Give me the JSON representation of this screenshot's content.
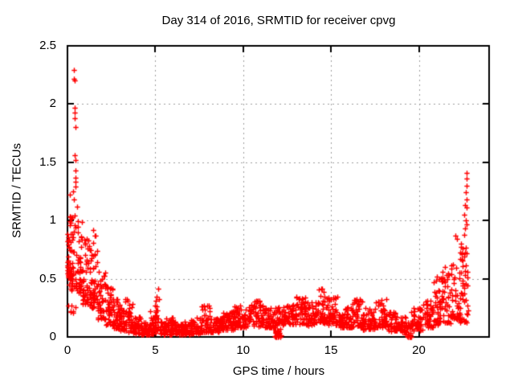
{
  "chart_data": {
    "type": "scatter",
    "title": "Day 314 of 2016, SRMTID for receiver cpvg",
    "xlabel": "GPS time / hours",
    "ylabel": "SRMTID / TECUs",
    "xlim": [
      0,
      24
    ],
    "ylim": [
      0,
      2.5
    ],
    "xticks": [
      0,
      5,
      10,
      15,
      20
    ],
    "yticks": [
      0,
      0.5,
      1,
      1.5,
      2,
      2.5
    ],
    "grid": true,
    "legend": "none",
    "marker": {
      "shape": "plus",
      "size": 7,
      "color": "#ff0000"
    },
    "colors": {
      "marker": "#ff0000",
      "grid": "#9e9e9e",
      "axis": "#000000",
      "background": "#ffffff"
    },
    "series": [
      {
        "name": "SRMTID",
        "note": "dense 30s scatter summarized as envelope bands [xStart,xEnd,yMin,yMax,count] plus explicit outlier points",
        "bands": [
          [
            0.0,
            0.15,
            0.5,
            1.15,
            30
          ],
          [
            0.05,
            0.6,
            0.2,
            0.55,
            12
          ],
          [
            0.15,
            0.5,
            0.4,
            1.05,
            40
          ],
          [
            0.5,
            0.85,
            0.38,
            1.0,
            40
          ],
          [
            0.85,
            1.25,
            0.28,
            0.85,
            45
          ],
          [
            1.25,
            1.55,
            0.25,
            0.75,
            35
          ],
          [
            1.45,
            1.7,
            0.3,
            0.93,
            25
          ],
          [
            1.7,
            2.2,
            0.15,
            0.6,
            45
          ],
          [
            2.2,
            2.6,
            0.1,
            0.45,
            40
          ],
          [
            2.6,
            3.0,
            0.07,
            0.33,
            40
          ],
          [
            3.0,
            3.3,
            0.05,
            0.25,
            30
          ],
          [
            3.3,
            3.7,
            0.04,
            0.33,
            38
          ],
          [
            3.7,
            4.2,
            0.03,
            0.18,
            45
          ],
          [
            4.2,
            4.7,
            0.02,
            0.13,
            45
          ],
          [
            4.7,
            5.05,
            0.03,
            0.22,
            35
          ],
          [
            4.95,
            5.25,
            0.05,
            0.42,
            22
          ],
          [
            5.25,
            5.6,
            0.02,
            0.13,
            35
          ],
          [
            5.6,
            6.2,
            0.02,
            0.17,
            55
          ],
          [
            6.2,
            7.0,
            0.02,
            0.13,
            70
          ],
          [
            7.0,
            7.6,
            0.03,
            0.18,
            55
          ],
          [
            7.6,
            8.1,
            0.04,
            0.27,
            45
          ],
          [
            8.1,
            8.8,
            0.04,
            0.16,
            60
          ],
          [
            8.8,
            9.5,
            0.06,
            0.24,
            60
          ],
          [
            9.5,
            10.3,
            0.08,
            0.27,
            65
          ],
          [
            10.3,
            11.2,
            0.09,
            0.32,
            70
          ],
          [
            11.2,
            11.8,
            0.08,
            0.26,
            50
          ],
          [
            11.8,
            12.15,
            0.0,
            0.07,
            28
          ],
          [
            11.8,
            12.2,
            0.1,
            0.27,
            30
          ],
          [
            12.2,
            13.0,
            0.1,
            0.28,
            65
          ],
          [
            13.0,
            13.6,
            0.11,
            0.36,
            50
          ],
          [
            13.6,
            14.2,
            0.1,
            0.3,
            50
          ],
          [
            14.2,
            14.8,
            0.12,
            0.42,
            50
          ],
          [
            14.8,
            15.4,
            0.1,
            0.35,
            50
          ],
          [
            15.4,
            16.2,
            0.08,
            0.26,
            62
          ],
          [
            16.2,
            16.8,
            0.08,
            0.33,
            48
          ],
          [
            16.8,
            17.5,
            0.06,
            0.25,
            55
          ],
          [
            17.5,
            18.2,
            0.08,
            0.33,
            55
          ],
          [
            18.2,
            19.0,
            0.05,
            0.22,
            60
          ],
          [
            19.0,
            19.3,
            0.04,
            0.18,
            20
          ],
          [
            19.2,
            19.55,
            0.0,
            0.13,
            30
          ],
          [
            19.55,
            20.2,
            0.05,
            0.25,
            50
          ],
          [
            20.2,
            20.8,
            0.08,
            0.32,
            45
          ],
          [
            20.8,
            21.2,
            0.1,
            0.5,
            40
          ],
          [
            21.2,
            21.8,
            0.12,
            0.55,
            45
          ],
          [
            21.8,
            22.3,
            0.15,
            0.62,
            45
          ],
          [
            22.3,
            22.8,
            0.12,
            0.78,
            50
          ]
        ],
        "outliers": [
          [
            0.36,
            2.29
          ],
          [
            0.38,
            2.22
          ],
          [
            0.4,
            2.2
          ],
          [
            0.4,
            1.97
          ],
          [
            0.42,
            1.93
          ],
          [
            0.43,
            1.88
          ],
          [
            0.45,
            1.8
          ],
          [
            0.42,
            1.56
          ],
          [
            0.44,
            1.52
          ],
          [
            0.47,
            1.43
          ],
          [
            0.44,
            1.37
          ],
          [
            0.46,
            1.33
          ],
          [
            0.45,
            1.29
          ],
          [
            0.3,
            1.25
          ],
          [
            0.12,
            1.22
          ],
          [
            0.35,
            1.18
          ],
          [
            0.55,
            1.12
          ],
          [
            22.72,
            1.41
          ],
          [
            22.7,
            1.36
          ],
          [
            22.74,
            1.3
          ],
          [
            22.68,
            1.24
          ],
          [
            22.72,
            1.18
          ],
          [
            22.64,
            1.13
          ],
          [
            22.7,
            1.11
          ],
          [
            22.6,
            1.05
          ],
          [
            22.66,
            1.0
          ],
          [
            22.72,
            0.97
          ],
          [
            22.62,
            0.93
          ],
          [
            22.56,
            0.88
          ],
          [
            22.1,
            0.87
          ],
          [
            22.16,
            0.84
          ],
          [
            22.42,
            0.8
          ],
          [
            22.5,
            0.76
          ],
          [
            22.46,
            0.71
          ],
          [
            22.36,
            0.67
          ],
          [
            21.95,
            0.62
          ],
          [
            21.5,
            0.6
          ],
          [
            21.35,
            0.56
          ],
          [
            21.05,
            0.52
          ]
        ]
      }
    ]
  }
}
